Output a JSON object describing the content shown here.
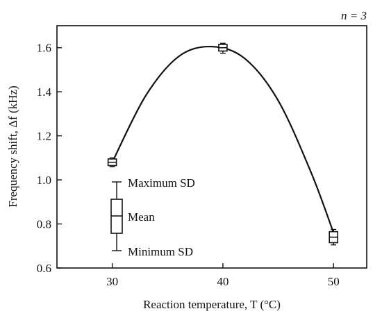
{
  "chart_data": {
    "type": "scatter",
    "title": "",
    "annotation": "n = 3",
    "xlabel": "Reaction temperature, T (°C)",
    "ylabel": "Frequency shift, Δf (kHz)",
    "xlim": [
      25,
      53
    ],
    "ylim": [
      0.6,
      1.7
    ],
    "xticks": [
      30,
      40,
      50
    ],
    "yticks": [
      0.6,
      0.8,
      1.0,
      1.2,
      1.4,
      1.6
    ],
    "ytick_labels": [
      "0.6",
      "0.8",
      "1.0",
      "1.2",
      "1.4",
      "1.6"
    ],
    "grid": false,
    "series": [
      {
        "points": [
          {
            "x": 30,
            "mean": 1.08,
            "q_low": 1.065,
            "q_high": 1.095,
            "sd_min": 1.06,
            "sd_max": 1.1
          },
          {
            "x": 40,
            "mean": 1.6,
            "q_low": 1.585,
            "q_high": 1.615,
            "sd_min": 1.575,
            "sd_max": 1.62
          },
          {
            "x": 50,
            "mean": 0.74,
            "q_low": 0.715,
            "q_high": 0.765,
            "sd_min": 0.705,
            "sd_max": 0.775
          }
        ]
      }
    ],
    "fit_curve": {
      "type": "smooth",
      "points": [
        [
          30,
          1.08
        ],
        [
          33,
          1.38
        ],
        [
          36,
          1.56
        ],
        [
          39,
          1.605
        ],
        [
          42,
          1.55
        ],
        [
          45,
          1.36
        ],
        [
          48,
          1.03
        ],
        [
          50,
          0.76
        ]
      ]
    },
    "legend": {
      "max_label": "Maximum SD",
      "mean_label": "Mean",
      "min_label": "Minimum SD"
    }
  }
}
